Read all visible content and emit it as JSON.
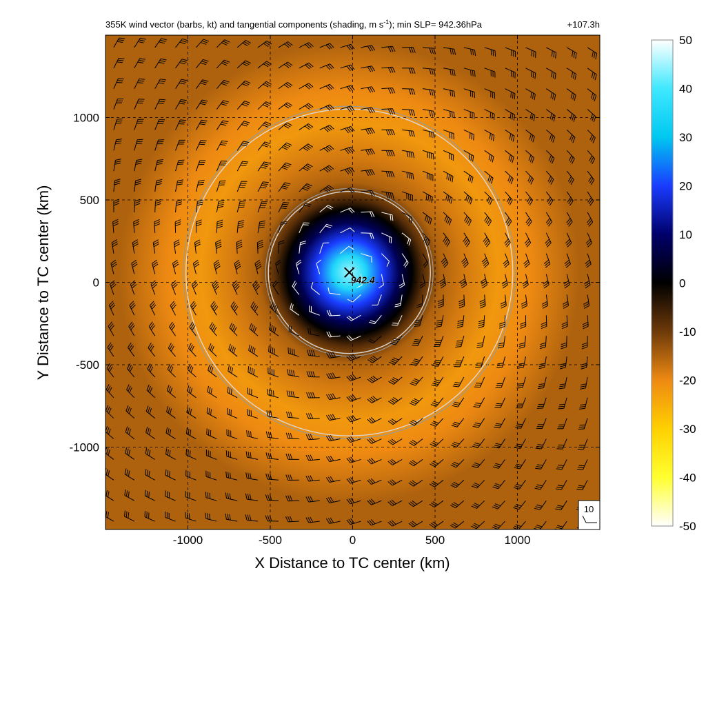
{
  "chart_data": {
    "type": "heatmap",
    "title_main": "355K wind vector (barbs, kt) and tangential components (shading, m s",
    "title_sup": "-1",
    "title_tail": "); min SLP= 942.36hPa",
    "time_label": "+107.3h",
    "xlabel": "X Distance to TC center (km)",
    "ylabel": "Y Distance to TC center (km)",
    "xlim": [
      -1500,
      1500
    ],
    "ylim": [
      -1500,
      1500
    ],
    "xticks": [
      -1000,
      -500,
      0,
      500,
      1000
    ],
    "yticks": [
      -1000,
      -500,
      0,
      500,
      1000
    ],
    "xtick_labels": [
      "-1000",
      "-500",
      "0",
      "500",
      "1000"
    ],
    "ytick_labels": [
      "-1000",
      "-500",
      "0",
      "500",
      "1000"
    ],
    "grid": true,
    "center_marker": {
      "x": -20,
      "y": 60,
      "label": "942.4"
    },
    "circles_km": [
      {
        "cx": -20,
        "cy": 60,
        "r": 500
      },
      {
        "cx": -20,
        "cy": 60,
        "r": 1000
      }
    ],
    "field": {
      "name": "tangential wind",
      "units": "m s-1",
      "description_profile_r_km": [
        0,
        100,
        200,
        300,
        380,
        450,
        550,
        700,
        900,
        1100,
        1400
      ],
      "description_profile_value": [
        45,
        35,
        20,
        8,
        0,
        -8,
        -15,
        -18,
        -22,
        -20,
        -15
      ]
    },
    "barbs": {
      "units": "kt",
      "reference_value": "10",
      "grid_spacing_km": 125
    },
    "colorbar": {
      "min": -50,
      "max": 50,
      "ticks": [
        50,
        40,
        30,
        20,
        10,
        0,
        -10,
        -20,
        -30,
        -40,
        -50
      ],
      "tick_labels": [
        "50",
        "40",
        "30",
        "20",
        "10",
        "0",
        "-10",
        "-20",
        "-30",
        "-40",
        "-50"
      ],
      "stops": [
        {
          "v": 50,
          "color": "#ffffff"
        },
        {
          "v": 40,
          "color": "#3fe8ff"
        },
        {
          "v": 30,
          "color": "#00c8f0"
        },
        {
          "v": 20,
          "color": "#1a3cff"
        },
        {
          "v": 10,
          "color": "#00006a"
        },
        {
          "v": 0,
          "color": "#000000"
        },
        {
          "v": -10,
          "color": "#6e3a0a"
        },
        {
          "v": -20,
          "color": "#ee8a12"
        },
        {
          "v": -30,
          "color": "#ffd000"
        },
        {
          "v": -40,
          "color": "#ffff30"
        },
        {
          "v": -50,
          "color": "#ffffff"
        }
      ]
    }
  }
}
